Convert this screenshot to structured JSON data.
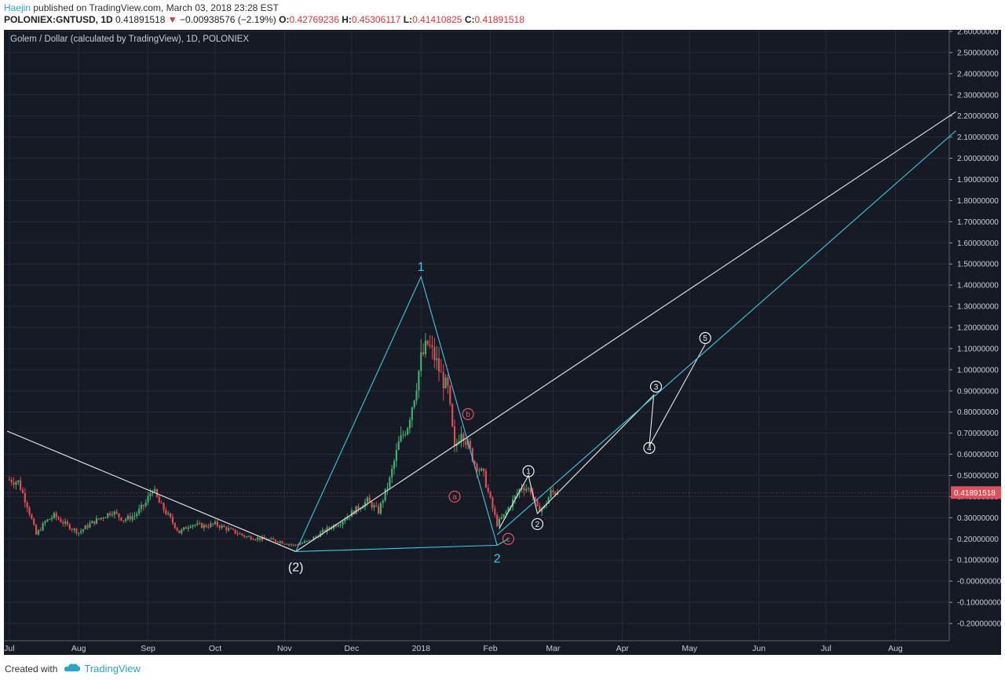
{
  "header": {
    "author": "Haejin",
    "published": " published on TradingView.com, March 03, 2018 23:28 EST",
    "symbol": "POLONIEX:GNTUSD, 1D",
    "last": "0.41891518",
    "change_arrow": "▼",
    "change": "−0.00938576 (−2.19%)",
    "open_label": "O:",
    "open": "0.42769236",
    "high_label": "H:",
    "high": "0.45306117",
    "low_label": "L:",
    "low": "0.41410825",
    "close_label": "C:",
    "close": "0.41891518"
  },
  "footer": {
    "created_with": "Created with",
    "brand": "TradingView"
  },
  "colors": {
    "background": "#161a25",
    "grid": "#262b38",
    "up": "#3fae6e",
    "down": "#e04a51",
    "cyan": "#3ec9dc",
    "white_line": "#e8e8e8",
    "red_label": "#e0555c",
    "price_tag": "#e0505a"
  },
  "chart_data": {
    "type": "candlestick",
    "title": "Golem / Dollar (calculated by TradingView), 1D, POLONIEX",
    "last_price_tag": "0.41891518",
    "y_ticks": [
      "2.60000000",
      "2.50000000",
      "2.40000000",
      "2.30000000",
      "2.20000000",
      "2.10000000",
      "2.00000000",
      "1.90000000",
      "1.80000000",
      "1.70000000",
      "1.60000000",
      "1.50000000",
      "1.40000000",
      "1.30000000",
      "1.20000000",
      "1.10000000",
      "1.00000000",
      "0.90000000",
      "0.80000000",
      "0.70000000",
      "0.60000000",
      "0.50000000",
      "0.40000000",
      "0.30000000",
      "0.20000000",
      "0.10000000",
      "-0.00000000",
      "-0.10000000",
      "-0.20000000"
    ],
    "x_ticks": [
      "Jul",
      "Aug",
      "Sep",
      "Oct",
      "Nov",
      "Dec",
      "2018",
      "Feb",
      "Mar",
      "Apr",
      "May",
      "Jun",
      "Jul",
      "Aug"
    ],
    "price_path": [
      [
        "2017-07-01",
        0.48
      ],
      [
        "2017-07-05",
        0.47
      ],
      [
        "2017-07-09",
        0.36
      ],
      [
        "2017-07-13",
        0.22
      ],
      [
        "2017-07-17",
        0.28
      ],
      [
        "2017-07-21",
        0.31
      ],
      [
        "2017-07-26",
        0.27
      ],
      [
        "2017-08-01",
        0.23
      ],
      [
        "2017-08-06",
        0.27
      ],
      [
        "2017-08-11",
        0.3
      ],
      [
        "2017-08-16",
        0.33
      ],
      [
        "2017-08-21",
        0.29
      ],
      [
        "2017-08-26",
        0.31
      ],
      [
        "2017-08-31",
        0.37
      ],
      [
        "2017-09-03",
        0.44
      ],
      [
        "2017-09-06",
        0.37
      ],
      [
        "2017-09-10",
        0.31
      ],
      [
        "2017-09-15",
        0.23
      ],
      [
        "2017-09-20",
        0.27
      ],
      [
        "2017-09-26",
        0.26
      ],
      [
        "2017-10-01",
        0.27
      ],
      [
        "2017-10-08",
        0.24
      ],
      [
        "2017-10-15",
        0.21
      ],
      [
        "2017-10-22",
        0.2
      ],
      [
        "2017-10-29",
        0.19
      ],
      [
        "2017-11-05",
        0.17
      ],
      [
        "2017-11-12",
        0.19
      ],
      [
        "2017-11-19",
        0.24
      ],
      [
        "2017-11-26",
        0.28
      ],
      [
        "2017-12-03",
        0.34
      ],
      [
        "2017-12-08",
        0.38
      ],
      [
        "2017-12-13",
        0.33
      ],
      [
        "2017-12-18",
        0.48
      ],
      [
        "2017-12-22",
        0.65
      ],
      [
        "2017-12-26",
        0.74
      ],
      [
        "2017-12-29",
        0.88
      ],
      [
        "2018-01-01",
        1.05
      ],
      [
        "2018-01-04",
        1.12
      ],
      [
        "2018-01-07",
        1.06
      ],
      [
        "2018-01-10",
        0.97
      ],
      [
        "2018-01-13",
        0.9
      ],
      [
        "2018-01-16",
        0.62
      ],
      [
        "2018-01-19",
        0.72
      ],
      [
        "2018-01-22",
        0.64
      ],
      [
        "2018-01-25",
        0.56
      ],
      [
        "2018-01-29",
        0.5
      ],
      [
        "2018-02-01",
        0.38
      ],
      [
        "2018-02-04",
        0.27
      ],
      [
        "2018-02-07",
        0.31
      ],
      [
        "2018-02-11",
        0.38
      ],
      [
        "2018-02-15",
        0.45
      ],
      [
        "2018-02-19",
        0.43
      ],
      [
        "2018-02-22",
        0.34
      ],
      [
        "2018-02-25",
        0.35
      ],
      [
        "2018-02-28",
        0.42
      ],
      [
        "2018-03-03",
        0.419
      ]
    ],
    "wave_labels": [
      {
        "text": "1",
        "color": "cyan",
        "date": "2018-01-01",
        "y": 1.49,
        "circled": false
      },
      {
        "text": "2",
        "color": "cyan",
        "date": "2018-02-04",
        "y": 0.11,
        "circled": false
      },
      {
        "text": "(2)",
        "color": "white",
        "date": "2017-11-06",
        "y": 0.07,
        "circled": false
      },
      {
        "text": "a",
        "color": "red",
        "date": "2018-01-16",
        "y": 0.4,
        "circled": true
      },
      {
        "text": "b",
        "color": "red",
        "date": "2018-01-22",
        "y": 0.79,
        "circled": true
      },
      {
        "text": "c",
        "color": "red",
        "date": "2018-02-09",
        "y": 0.2,
        "circled": true
      },
      {
        "text": "1",
        "color": "white",
        "date": "2018-02-18",
        "y": 0.52,
        "circled": true
      },
      {
        "text": "2",
        "color": "white",
        "date": "2018-02-22",
        "y": 0.27,
        "circled": true
      },
      {
        "text": "3",
        "color": "white",
        "date": "2018-04-16",
        "y": 0.92,
        "circled": true
      },
      {
        "text": "4",
        "color": "white",
        "date": "2018-04-13",
        "y": 0.63,
        "circled": true
      },
      {
        "text": "5",
        "color": "white",
        "date": "2018-05-08",
        "y": 1.15,
        "circled": true
      }
    ],
    "cyan_lines": [
      [
        [
          "2017-11-06",
          0.14
        ],
        [
          "2018-01-01",
          1.44
        ],
        [
          "2018-02-04",
          0.17
        ],
        [
          "2018-02-09",
          0.2
        ]
      ],
      [
        [
          "2017-11-06",
          0.14
        ],
        [
          "2018-02-04",
          0.17
        ]
      ],
      [
        [
          "2018-02-04",
          0.22
        ],
        [
          "2018-08-28",
          2.13
        ]
      ]
    ],
    "white_lines": [
      [
        [
          "2017-06-30",
          0.71
        ],
        [
          "2017-11-06",
          0.14
        ]
      ],
      [
        [
          "2017-11-06",
          0.14
        ],
        [
          "2018-08-28",
          2.22
        ]
      ],
      [
        [
          "2018-02-05",
          0.25
        ],
        [
          "2018-02-18",
          0.5
        ],
        [
          "2018-02-22",
          0.32
        ],
        [
          "2018-04-15",
          0.88
        ],
        [
          "2018-04-13",
          0.64
        ],
        [
          "2018-05-08",
          1.12
        ]
      ]
    ]
  }
}
